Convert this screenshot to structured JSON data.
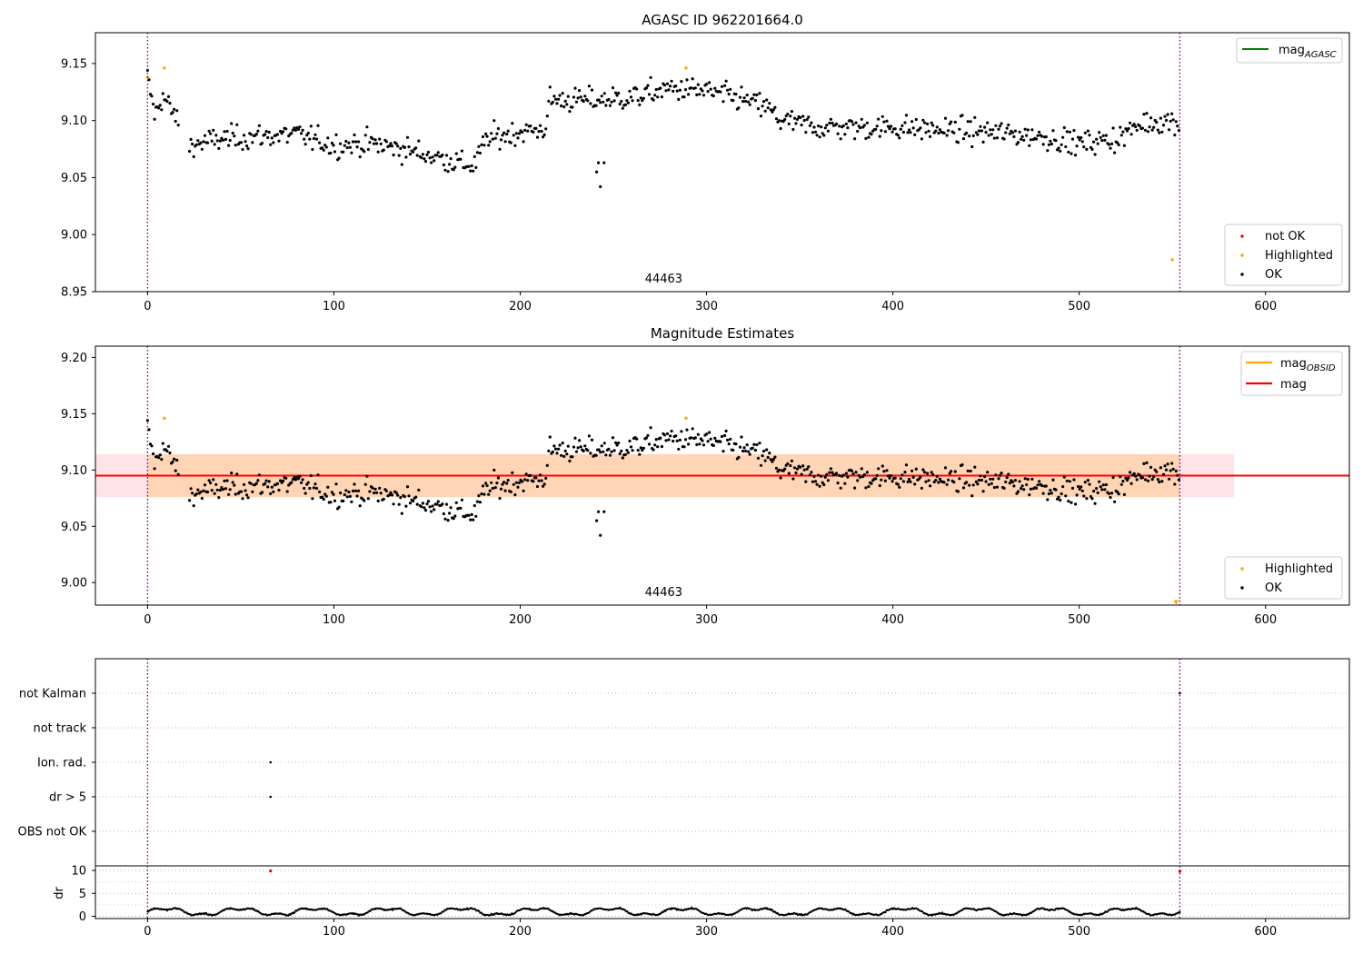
{
  "chart_data": [
    {
      "type": "scatter",
      "title": "AGASC ID 962201664.0",
      "xlim": [
        -28,
        645
      ],
      "ylim": [
        8.95,
        9.177
      ],
      "xticks": [
        0,
        100,
        200,
        300,
        400,
        500,
        600
      ],
      "yticks": [
        8.95,
        9.0,
        9.05,
        9.1,
        9.15
      ],
      "ytick_labels": [
        "8.95",
        "9.00",
        "9.05",
        "9.10",
        "9.15"
      ],
      "vlines": [
        0,
        554
      ],
      "annotation": {
        "text": "44463",
        "x": 277,
        "y": 8.958
      },
      "legend_lines": [
        {
          "label": "mag",
          "sub": "AGASC",
          "color": "#008000"
        }
      ],
      "legend_points": [
        {
          "label": "not OK",
          "color": "#ff0000"
        },
        {
          "label": "Highlighted",
          "color": "#ffa500"
        },
        {
          "label": "OK",
          "color": "#000000"
        }
      ],
      "highlighted": [
        [
          0,
          9.138
        ],
        [
          9,
          9.146
        ],
        [
          289,
          9.146
        ],
        [
          550,
          8.978
        ]
      ]
    },
    {
      "type": "scatter",
      "title": "Magnitude Estimates",
      "xlim": [
        -28,
        645
      ],
      "ylim": [
        8.98,
        9.21
      ],
      "xticks": [
        0,
        100,
        200,
        300,
        400,
        500,
        600
      ],
      "yticks": [
        9.0,
        9.05,
        9.1,
        9.15,
        9.2
      ],
      "ytick_labels": [
        "9.00",
        "9.05",
        "9.10",
        "9.15",
        "9.20"
      ],
      "vlines": [
        0,
        554
      ],
      "annotation": {
        "text": "44463",
        "x": 277,
        "y": 8.988
      },
      "mag": 9.095,
      "mag_band": [
        9.076,
        9.114
      ],
      "band_x": [
        -28,
        583
      ],
      "obsid_band_x": [
        0,
        554
      ],
      "legend_lines": [
        {
          "label": "mag",
          "sub": "OBSID",
          "color": "#ffa500"
        },
        {
          "label": "mag",
          "sub": "",
          "color": "#ff0000"
        }
      ],
      "legend_points": [
        {
          "label": "Highlighted",
          "color": "#ffa500"
        },
        {
          "label": "OK",
          "color": "#000000"
        }
      ],
      "highlighted": [
        [
          9,
          9.146
        ],
        [
          289,
          9.146
        ]
      ],
      "offscale_marker": [
        552,
        8.982
      ]
    },
    {
      "type": "scatter",
      "categories": [
        "not Kalman",
        "not track",
        "Ion. rad.",
        "dr > 5",
        "OBS not OK"
      ],
      "xlim": [
        -28,
        645
      ],
      "vlines": [
        0,
        554
      ],
      "points": [
        [
          554,
          "not Kalman"
        ],
        [
          66,
          "Ion. rad."
        ],
        [
          66,
          "dr > 5"
        ]
      ]
    },
    {
      "type": "scatter",
      "ylabel": "dr",
      "ylim": [
        -0.5,
        11
      ],
      "yticks": [
        0,
        5,
        10
      ],
      "ytick_labels": [
        "0",
        "5",
        "10"
      ],
      "xlim": [
        -28,
        645
      ],
      "xticks": [
        0,
        100,
        200,
        300,
        400,
        500,
        600
      ],
      "vlines": [
        0,
        554
      ],
      "outliers": [
        [
          66,
          9.9
        ],
        [
          554,
          9.8
        ]
      ]
    }
  ]
}
